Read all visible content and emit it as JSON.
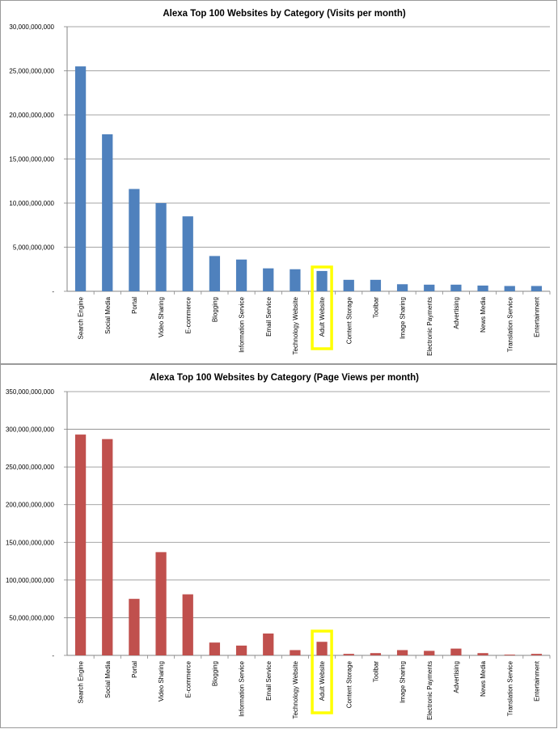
{
  "chart_data": [
    {
      "type": "bar",
      "title": "Alexa Top 100 Websites by Category (Visits per month)",
      "xlabel": "",
      "ylabel": "",
      "ylim": [
        0,
        30000000000
      ],
      "yticks": [
        0,
        5000000000,
        10000000000,
        15000000000,
        20000000000,
        25000000000,
        30000000000
      ],
      "ytick_labels": [
        "-",
        "5,000,000,000",
        "10,000,000,000",
        "15,000,000,000",
        "20,000,000,000",
        "25,000,000,000",
        "30,000,000,000"
      ],
      "grid": true,
      "bar_color": "#4f81bd",
      "highlight_color": "#ffff00",
      "highlight_category": "Adult Website",
      "categories": [
        "Search Engine",
        "Social Media",
        "Portal",
        "Video Sharing",
        "E-commerce",
        "Blogging",
        "Information Service",
        "Email Service",
        "Technology Website",
        "Adult Website",
        "Content Storage",
        "Toolbar",
        "Image Sharing",
        "Electronic Payments",
        "Advertising",
        "News Media",
        "Translation Service",
        "Entertainment"
      ],
      "values": [
        25500000000,
        17800000000,
        11600000000,
        10000000000,
        8500000000,
        4000000000,
        3600000000,
        2600000000,
        2500000000,
        2300000000,
        1300000000,
        1300000000,
        800000000,
        750000000,
        750000000,
        650000000,
        600000000,
        600000000
      ]
    },
    {
      "type": "bar",
      "title": "Alexa Top 100 Websites by Category (Page Views per month)",
      "xlabel": "",
      "ylabel": "",
      "ylim": [
        0,
        350000000000
      ],
      "yticks": [
        0,
        50000000000,
        100000000000,
        150000000000,
        200000000000,
        250000000000,
        300000000000,
        350000000000
      ],
      "ytick_labels": [
        "-",
        "50,000,000,000",
        "100,000,000,000",
        "150,000,000,000",
        "200,000,000,000",
        "250,000,000,000",
        "300,000,000,000",
        "350,000,000,000"
      ],
      "grid": true,
      "bar_color": "#c0504d",
      "highlight_color": "#ffff00",
      "highlight_category": "Adult Website",
      "categories": [
        "Search Engine",
        "Social Media",
        "Portal",
        "Video Sharing",
        "E-commerce",
        "Blogging",
        "Information Service",
        "Email Service",
        "Technology Website",
        "Adult Website",
        "Content Storage",
        "Toolbar",
        "Image Sharing",
        "Electronic Payments",
        "Advertising",
        "News Media",
        "Translation Service",
        "Entertainment"
      ],
      "values": [
        293000000000,
        287000000000,
        75000000000,
        137000000000,
        81000000000,
        17000000000,
        13000000000,
        29000000000,
        7000000000,
        18000000000,
        2000000000,
        3000000000,
        7000000000,
        6000000000,
        9000000000,
        3000000000,
        1000000000,
        2000000000
      ]
    }
  ]
}
